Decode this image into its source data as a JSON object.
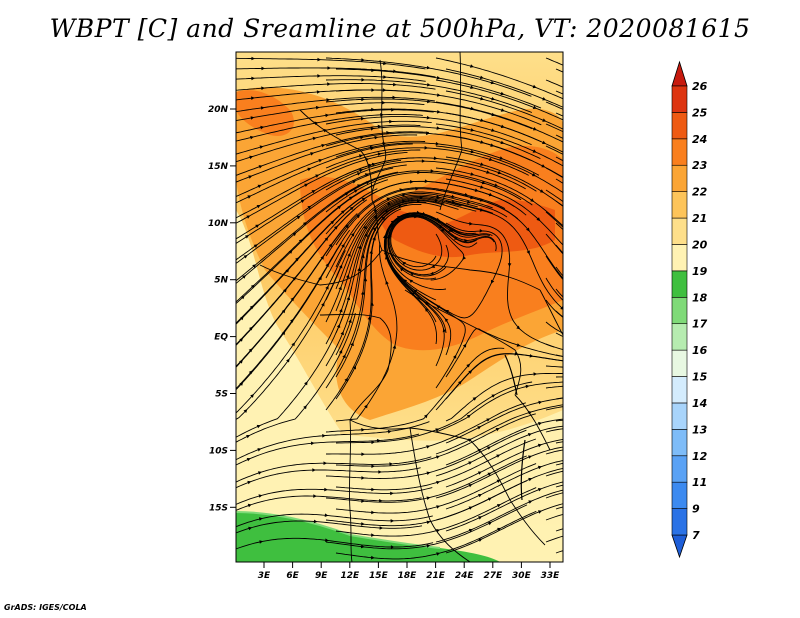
{
  "title": "WBPT [C] and Sreamline at 500hPa, VT: 2020081615",
  "credit": "GrADS: IGES/COLA",
  "map": {
    "lat_labels": [
      "20N",
      "15N",
      "10N",
      "5N",
      "EQ",
      "5S",
      "10S",
      "15S"
    ],
    "lon_labels": [
      "3E",
      "6E",
      "9E",
      "12E",
      "15E",
      "18E",
      "21E",
      "24E",
      "27E",
      "30E",
      "33E"
    ]
  },
  "colorbar": {
    "labels": [
      "7",
      "9",
      "11",
      "12",
      "13",
      "14",
      "15",
      "16",
      "17",
      "18",
      "19",
      "20",
      "21",
      "22",
      "23",
      "24",
      "25",
      "26"
    ],
    "colors": [
      "#1e5ed8",
      "#2a72e6",
      "#3c8af0",
      "#5aa2f5",
      "#7ebcf8",
      "#a8d4fb",
      "#d4ecfd",
      "#e8f8e2",
      "#b6ecb0",
      "#7fda78",
      "#3fbf3f",
      "#fff2b3",
      "#fedf8a",
      "#fdc45a",
      "#fba535",
      "#f97f1e",
      "#ee5a12",
      "#dd3410",
      "#c71a0e"
    ]
  }
}
